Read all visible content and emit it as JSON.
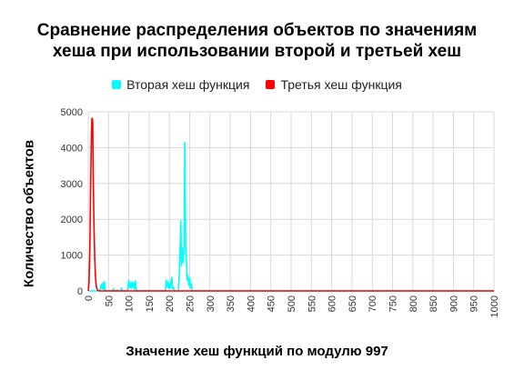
{
  "chart_data": {
    "type": "line",
    "title_line1": "Сравнение распределения объектов по значениям",
    "title_line2": "хеша при использовании второй и третьей хеш",
    "xlabel": "Значение хеш функций по модулю 997",
    "ylabel": "Количество объектов",
    "xlim": [
      0,
      1000
    ],
    "ylim": [
      0,
      5000
    ],
    "x_ticks": [
      0,
      50,
      100,
      150,
      200,
      250,
      300,
      350,
      400,
      450,
      500,
      550,
      600,
      650,
      700,
      750,
      800,
      850,
      900,
      950,
      1000
    ],
    "y_ticks": [
      0,
      1000,
      2000,
      3000,
      4000,
      5000
    ],
    "grid": true,
    "legend_position": "top",
    "series": [
      {
        "name": "Вторая хеш функция",
        "color": "#00ffff",
        "points": [
          [
            0,
            0
          ],
          [
            28,
            0
          ],
          [
            30,
            80
          ],
          [
            32,
            180
          ],
          [
            34,
            60
          ],
          [
            36,
            220
          ],
          [
            38,
            40
          ],
          [
            40,
            260
          ],
          [
            42,
            0
          ],
          [
            60,
            0
          ],
          [
            62,
            60
          ],
          [
            64,
            0
          ],
          [
            70,
            0
          ],
          [
            72,
            30
          ],
          [
            74,
            0
          ],
          [
            80,
            0
          ],
          [
            82,
            80
          ],
          [
            84,
            0
          ],
          [
            96,
            0
          ],
          [
            98,
            120
          ],
          [
            100,
            300
          ],
          [
            102,
            100
          ],
          [
            104,
            220
          ],
          [
            106,
            60
          ],
          [
            108,
            250
          ],
          [
            110,
            120
          ],
          [
            112,
            220
          ],
          [
            114,
            40
          ],
          [
            116,
            280
          ],
          [
            118,
            60
          ],
          [
            120,
            0
          ],
          [
            190,
            0
          ],
          [
            192,
            300
          ],
          [
            194,
            120
          ],
          [
            196,
            250
          ],
          [
            198,
            80
          ],
          [
            200,
            200
          ],
          [
            202,
            60
          ],
          [
            204,
            280
          ],
          [
            206,
            380
          ],
          [
            208,
            60
          ],
          [
            210,
            100
          ],
          [
            212,
            0
          ],
          [
            222,
            0
          ],
          [
            224,
            400
          ],
          [
            226,
            900
          ],
          [
            228,
            1960
          ],
          [
            230,
            700
          ],
          [
            232,
            1200
          ],
          [
            234,
            800
          ],
          [
            236,
            1150
          ],
          [
            238,
            4150
          ],
          [
            240,
            1300
          ],
          [
            242,
            900
          ],
          [
            244,
            300
          ],
          [
            246,
            420
          ],
          [
            248,
            150
          ],
          [
            250,
            350
          ],
          [
            252,
            80
          ],
          [
            254,
            200
          ],
          [
            256,
            0
          ],
          [
            1000,
            0
          ]
        ]
      },
      {
        "name": "Третья хеш функция",
        "color": "#ff0000",
        "points": [
          [
            0,
            0
          ],
          [
            2,
            250
          ],
          [
            4,
            1200
          ],
          [
            6,
            3000
          ],
          [
            8,
            4450
          ],
          [
            9,
            4800
          ],
          [
            10,
            4820
          ],
          [
            11,
            4700
          ],
          [
            12,
            3500
          ],
          [
            14,
            1900
          ],
          [
            16,
            900
          ],
          [
            18,
            350
          ],
          [
            20,
            120
          ],
          [
            22,
            40
          ],
          [
            24,
            15
          ],
          [
            26,
            5
          ],
          [
            30,
            0
          ],
          [
            1000,
            0
          ]
        ]
      }
    ]
  }
}
